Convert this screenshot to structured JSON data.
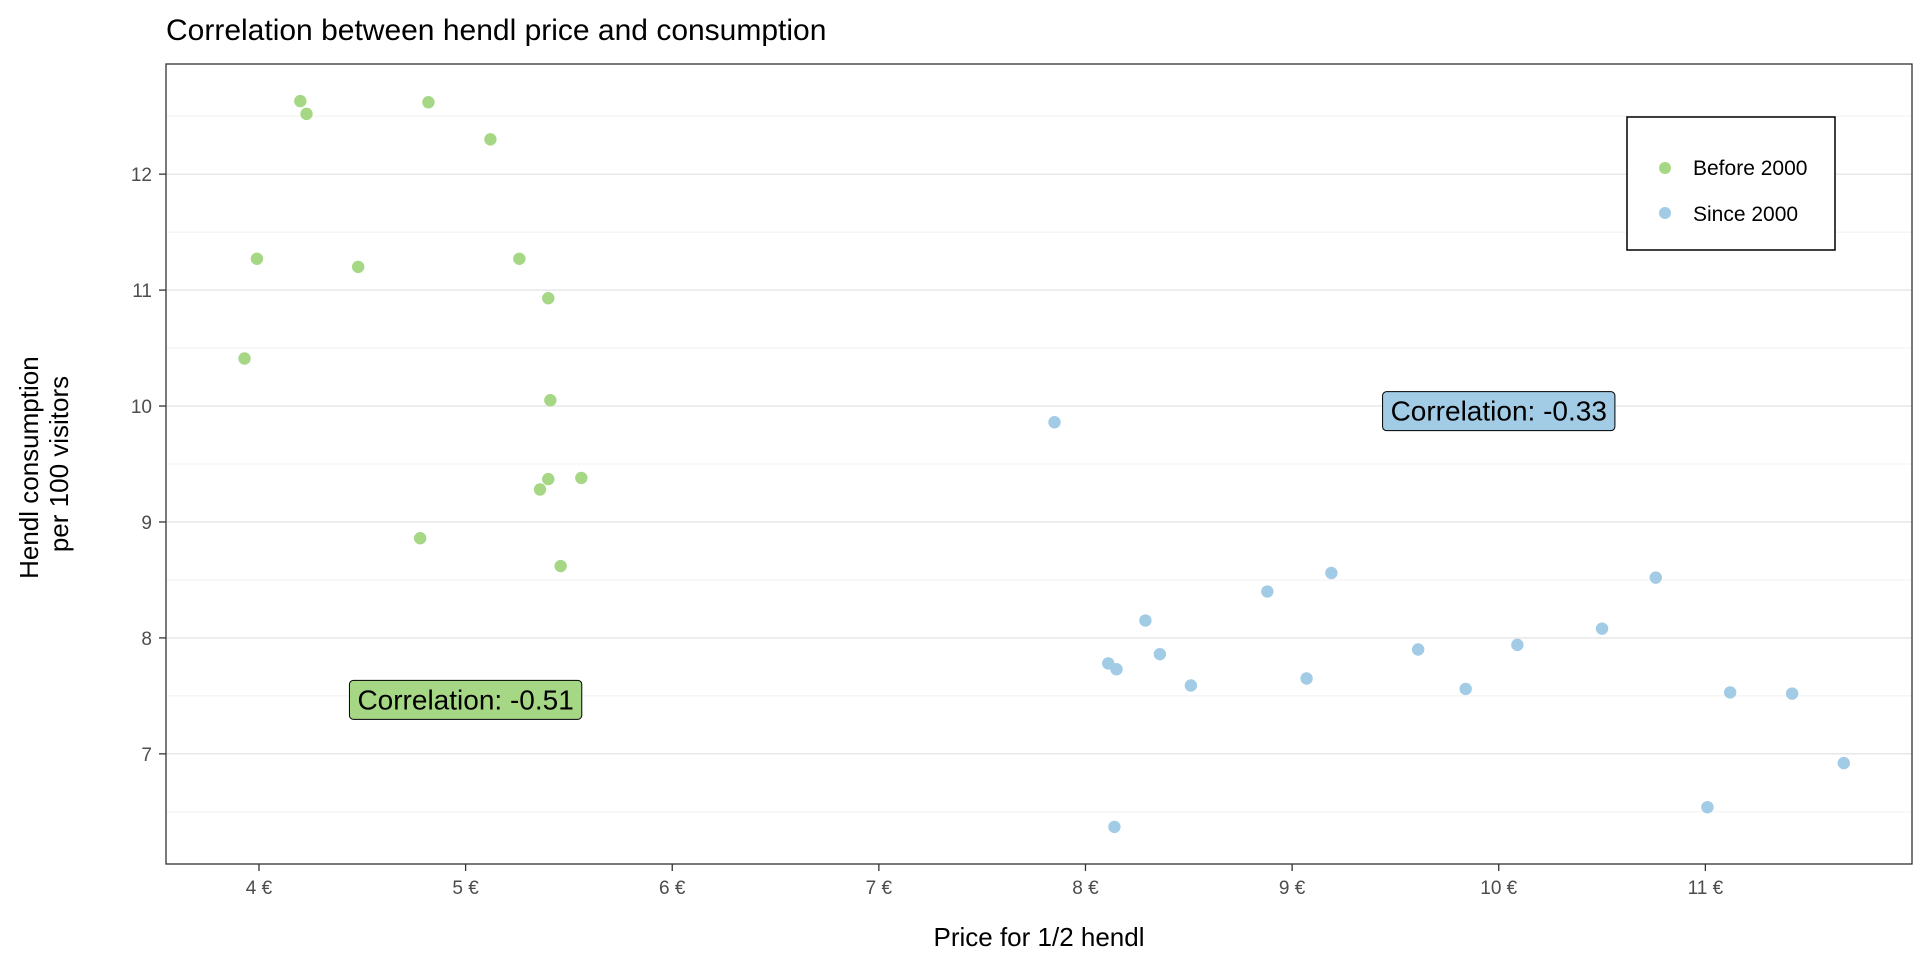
{
  "chart_data": {
    "type": "scatter",
    "title": "Correlation between hendl price and consumption",
    "xlabel": "Price for 1/2 hendl",
    "ylabel_lines": [
      "Hendl consumption",
      "per 100 visitors"
    ],
    "xlim": [
      3.55,
      12.0
    ],
    "ylim": [
      6.05,
      12.95
    ],
    "x_ticks": [
      4,
      5,
      6,
      7,
      8,
      9,
      10,
      11
    ],
    "x_tick_labels": [
      "4 €",
      "5 €",
      "6 €",
      "7 €",
      "8 €",
      "9 €",
      "10 €",
      "11 €"
    ],
    "y_ticks": [
      7,
      8,
      9,
      10,
      11,
      12
    ],
    "y_tick_labels": [
      "7",
      "8",
      "9",
      "10",
      "11",
      "12"
    ],
    "grid": "horizontal",
    "legend_position": "top-right",
    "series": [
      {
        "name": "Before 2000",
        "color": "#a6d785",
        "points": [
          [
            4.2,
            12.63
          ],
          [
            4.23,
            12.52
          ],
          [
            4.82,
            12.62
          ],
          [
            5.12,
            12.3
          ],
          [
            3.99,
            11.27
          ],
          [
            4.48,
            11.2
          ],
          [
            5.26,
            11.27
          ],
          [
            5.4,
            10.93
          ],
          [
            3.93,
            10.41
          ],
          [
            5.41,
            10.05
          ],
          [
            5.4,
            9.37
          ],
          [
            5.56,
            9.38
          ],
          [
            5.36,
            9.28
          ],
          [
            4.78,
            8.86
          ],
          [
            5.46,
            8.62
          ]
        ]
      },
      {
        "name": "Since 2000",
        "color": "#a2cbe5",
        "points": [
          [
            7.85,
            9.86
          ],
          [
            9.19,
            8.56
          ],
          [
            10.76,
            8.52
          ],
          [
            8.88,
            8.4
          ],
          [
            8.29,
            8.15
          ],
          [
            10.5,
            8.08
          ],
          [
            10.09,
            7.94
          ],
          [
            9.61,
            7.9
          ],
          [
            8.36,
            7.86
          ],
          [
            8.11,
            7.78
          ],
          [
            8.15,
            7.73
          ],
          [
            9.07,
            7.65
          ],
          [
            8.51,
            7.59
          ],
          [
            9.84,
            7.56
          ],
          [
            11.12,
            7.53
          ],
          [
            11.42,
            7.52
          ],
          [
            11.67,
            6.92
          ],
          [
            11.01,
            6.54
          ],
          [
            8.14,
            6.37
          ]
        ]
      }
    ],
    "annotations": [
      {
        "text": "Correlation: -0.51",
        "x": 5.0,
        "y": 7.47,
        "fill": "#a6d785"
      },
      {
        "text": "Correlation: -0.33",
        "x": 10.0,
        "y": 9.96,
        "fill": "#a2cbe5"
      }
    ]
  }
}
